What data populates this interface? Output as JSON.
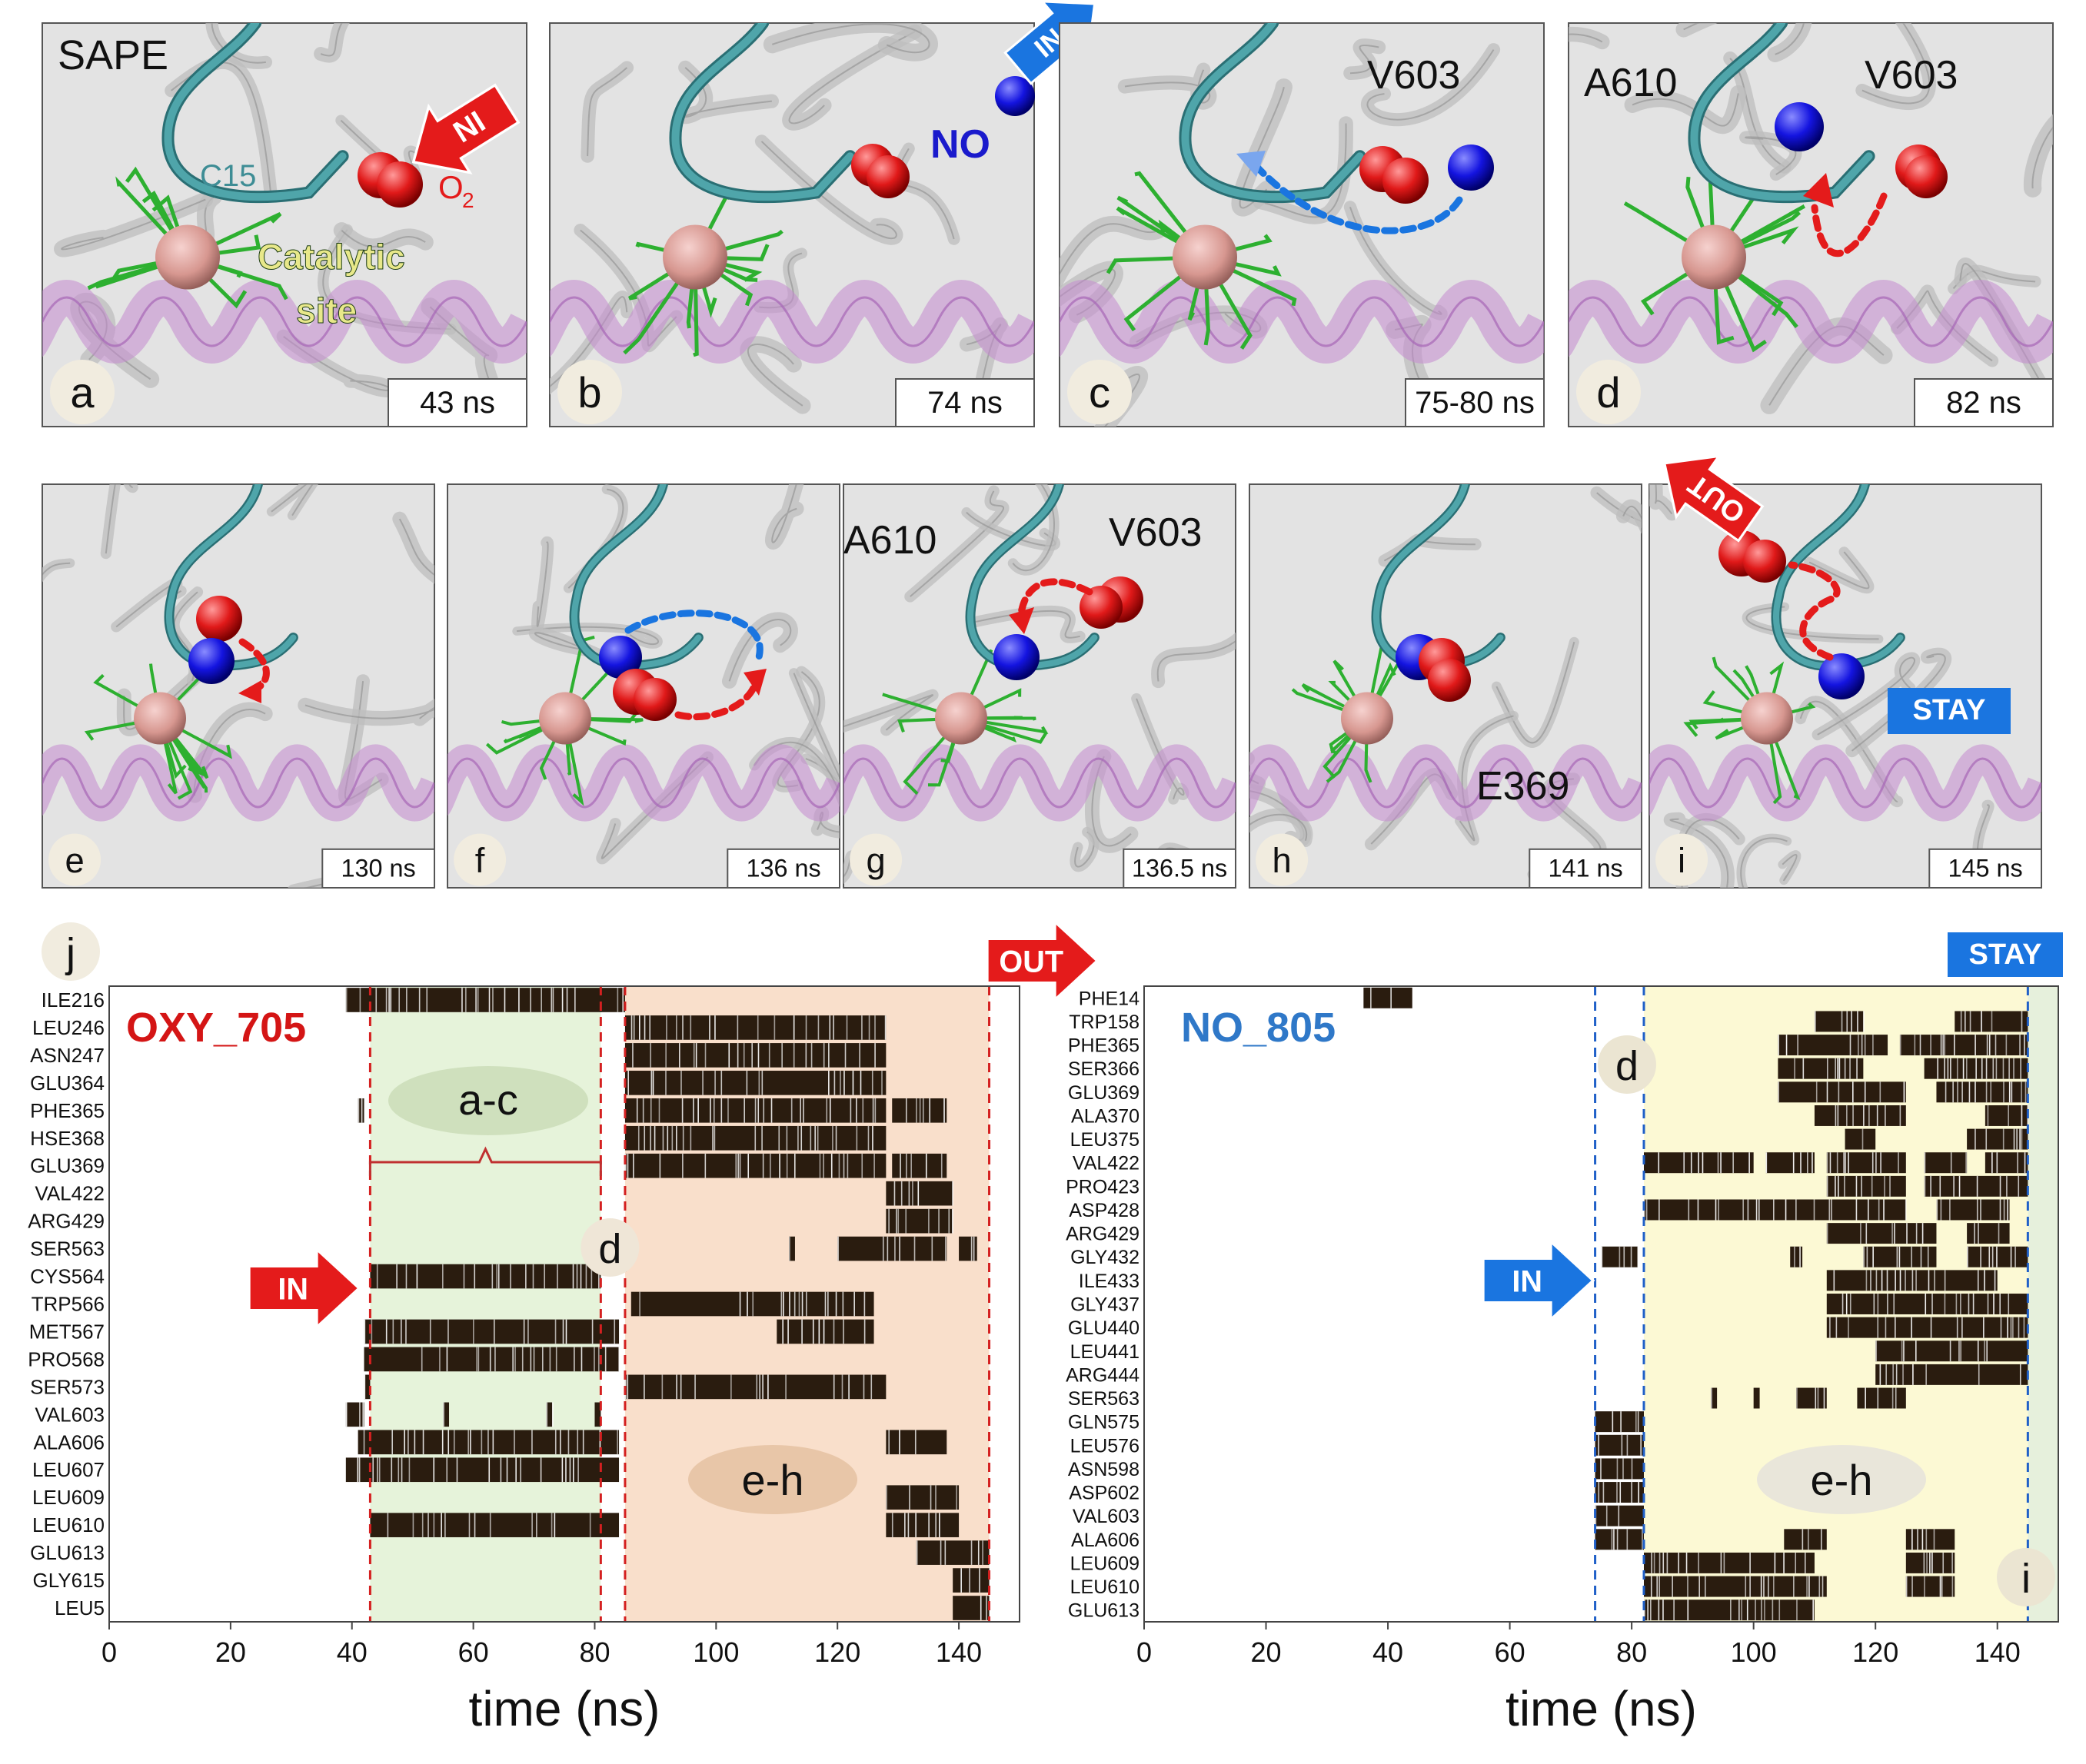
{
  "panels_top": [
    {
      "letter": "a",
      "time": "43 ns"
    },
    {
      "letter": "b",
      "time": "74 ns"
    },
    {
      "letter": "c",
      "time": "75-80 ns"
    },
    {
      "letter": "d",
      "time": "82 ns"
    }
  ],
  "panels_mid": [
    {
      "letter": "e",
      "time": "130 ns"
    },
    {
      "letter": "f",
      "time": "136 ns"
    },
    {
      "letter": "g",
      "time": "136.5 ns"
    },
    {
      "letter": "h",
      "time": "141 ns"
    },
    {
      "letter": "i",
      "time": "145 ns"
    }
  ],
  "annotations": {
    "sape": "SAPE",
    "c15": "C15",
    "in": "IN",
    "o2": "O",
    "o2_sub": "2",
    "catalytic": "Catalytic",
    "site": "site",
    "no": "NO",
    "v603": "V603",
    "a610": "A610",
    "e369": "E369",
    "out": "OUT",
    "stay": "STAY"
  },
  "colors": {
    "red": "#e41b1b",
    "blue": "#1a75e0",
    "green_band": "#e6f3da",
    "orange_band": "#f9dfcb",
    "yellow_band": "#fcf9d4",
    "green_band_right": "#e6f0dc",
    "dash_red": "#d42020",
    "dash_blue": "#2060c8"
  },
  "chart_data": [
    {
      "type": "heatmap",
      "panel": "j",
      "title": "OXY_705",
      "xlabel": "time (ns)",
      "xlim": [
        0,
        150
      ],
      "xticks": [
        0,
        20,
        40,
        60,
        80,
        100,
        120,
        140
      ],
      "residues": [
        "ILE216",
        "LEU246",
        "ASN247",
        "GLU364",
        "PHE365",
        "HSE368",
        "GLU369",
        "VAL422",
        "ARG429",
        "SER563",
        "CYS564",
        "TRP566",
        "MET567",
        "PRO568",
        "SER573",
        "VAL603",
        "ALA606",
        "LEU607",
        "LEU609",
        "LEU610",
        "GLU613",
        "GLY615",
        "LEU5"
      ],
      "bands": [
        {
          "label": "a-c",
          "start": 43,
          "end": 81
        },
        {
          "label": "e-h",
          "start": 85,
          "end": 145
        }
      ],
      "markers": [
        {
          "label": "IN",
          "at": 43
        },
        {
          "label": "d",
          "at": 81
        },
        {
          "label": "OUT",
          "at": 145
        }
      ],
      "contacts": [
        {
          "residue": "ILE216",
          "segments": [
            [
              39,
              85
            ]
          ]
        },
        {
          "residue": "LEU246",
          "segments": [
            [
              85,
              128
            ]
          ]
        },
        {
          "residue": "ASN247",
          "segments": [
            [
              85,
              128
            ]
          ]
        },
        {
          "residue": "GLU364",
          "segments": [
            [
              85,
              128
            ]
          ]
        },
        {
          "residue": "PHE365",
          "segments": [
            [
              41,
              42
            ],
            [
              85,
              128
            ],
            [
              129,
              138
            ]
          ]
        },
        {
          "residue": "HSE368",
          "segments": [
            [
              85,
              128
            ]
          ]
        },
        {
          "residue": "GLU369",
          "segments": [
            [
              85,
              128
            ],
            [
              129,
              138
            ]
          ]
        },
        {
          "residue": "VAL422",
          "segments": [
            [
              128,
              139
            ]
          ]
        },
        {
          "residue": "ARG429",
          "segments": [
            [
              128,
              139
            ]
          ]
        },
        {
          "residue": "SER563",
          "segments": [
            [
              112,
              113
            ],
            [
              120,
              138
            ],
            [
              140,
              143
            ]
          ]
        },
        {
          "residue": "CYS564",
          "segments": [
            [
              43,
              81
            ]
          ]
        },
        {
          "residue": "TRP566",
          "segments": [
            [
              86,
              126
            ]
          ]
        },
        {
          "residue": "MET567",
          "segments": [
            [
              42,
              84
            ],
            [
              110,
              126
            ]
          ]
        },
        {
          "residue": "PRO568",
          "segments": [
            [
              42,
              84
            ]
          ]
        },
        {
          "residue": "SER573",
          "segments": [
            [
              42,
              43
            ],
            [
              85,
              128
            ]
          ]
        },
        {
          "residue": "VAL603",
          "segments": [
            [
              39,
              42
            ],
            [
              55,
              56
            ],
            [
              72,
              73
            ],
            [
              80,
              81
            ]
          ]
        },
        {
          "residue": "ALA606",
          "segments": [
            [
              41,
              84
            ],
            [
              128,
              138
            ]
          ]
        },
        {
          "residue": "LEU607",
          "segments": [
            [
              39,
              84
            ]
          ]
        },
        {
          "residue": "LEU609",
          "segments": [
            [
              128,
              140
            ]
          ]
        },
        {
          "residue": "LEU610",
          "segments": [
            [
              43,
              84
            ],
            [
              128,
              140
            ]
          ]
        },
        {
          "residue": "GLU613",
          "segments": [
            [
              133,
              145
            ]
          ]
        },
        {
          "residue": "GLY615",
          "segments": [
            [
              139,
              145
            ]
          ]
        },
        {
          "residue": "LEU5",
          "segments": [
            [
              139,
              145
            ]
          ]
        }
      ]
    },
    {
      "type": "heatmap",
      "title": "NO_805",
      "xlabel": "time (ns)",
      "xlim": [
        0,
        150
      ],
      "xticks": [
        0,
        20,
        40,
        60,
        80,
        100,
        120,
        140
      ],
      "residues": [
        "PHE14",
        "TRP158",
        "PHE365",
        "SER366",
        "GLU369",
        "ALA370",
        "LEU375",
        "VAL422",
        "PRO423",
        "ASP428",
        "ARG429",
        "GLY432",
        "ILE433",
        "GLY437",
        "GLU440",
        "LEU441",
        "ARG444",
        "SER563",
        "GLN575",
        "LEU576",
        "ASN598",
        "ASP602",
        "VAL603",
        "ALA606",
        "LEU609",
        "LEU610",
        "GLU613"
      ],
      "bands": [
        {
          "label": "e-h",
          "start": 82,
          "end": 145
        },
        {
          "label": "i",
          "start": 145,
          "end": 150
        }
      ],
      "markers": [
        {
          "label": "IN",
          "at": 74
        },
        {
          "label": "d",
          "at": 82
        },
        {
          "label": "STAY",
          "at": 145
        }
      ],
      "contacts": [
        {
          "residue": "PHE14",
          "segments": [
            [
              36,
              44
            ]
          ]
        },
        {
          "residue": "TRP158",
          "segments": [
            [
              110,
              118
            ],
            [
              133,
              145
            ]
          ]
        },
        {
          "residue": "PHE365",
          "segments": [
            [
              104,
              122
            ],
            [
              124,
              145
            ]
          ]
        },
        {
          "residue": "SER366",
          "segments": [
            [
              104,
              118
            ],
            [
              128,
              145
            ]
          ]
        },
        {
          "residue": "GLU369",
          "segments": [
            [
              104,
              125
            ],
            [
              130,
              145
            ]
          ]
        },
        {
          "residue": "ALA370",
          "segments": [
            [
              110,
              125
            ],
            [
              138,
              145
            ]
          ]
        },
        {
          "residue": "LEU375",
          "segments": [
            [
              115,
              120
            ],
            [
              135,
              145
            ]
          ]
        },
        {
          "residue": "VAL422",
          "segments": [
            [
              82,
              100
            ],
            [
              102,
              110
            ],
            [
              112,
              125
            ],
            [
              128,
              135
            ],
            [
              138,
              145
            ]
          ]
        },
        {
          "residue": "PRO423",
          "segments": [
            [
              112,
              125
            ],
            [
              128,
              145
            ]
          ]
        },
        {
          "residue": "ASP428",
          "segments": [
            [
              82,
              125
            ],
            [
              130,
              142
            ]
          ]
        },
        {
          "residue": "ARG429",
          "segments": [
            [
              112,
              130
            ],
            [
              135,
              142
            ]
          ]
        },
        {
          "residue": "GLY432",
          "segments": [
            [
              75,
              81
            ],
            [
              106,
              108
            ],
            [
              118,
              130
            ],
            [
              135,
              145
            ]
          ]
        },
        {
          "residue": "ILE433",
          "segments": [
            [
              112,
              140
            ]
          ]
        },
        {
          "residue": "GLY437",
          "segments": [
            [
              112,
              145
            ]
          ]
        },
        {
          "residue": "GLU440",
          "segments": [
            [
              112,
              145
            ]
          ]
        },
        {
          "residue": "LEU441",
          "segments": [
            [
              120,
              145
            ]
          ]
        },
        {
          "residue": "ARG444",
          "segments": [
            [
              120,
              145
            ]
          ]
        },
        {
          "residue": "SER563",
          "segments": [
            [
              93,
              94
            ],
            [
              100,
              101
            ],
            [
              107,
              112
            ],
            [
              117,
              125
            ]
          ]
        },
        {
          "residue": "GLN575",
          "segments": [
            [
              74,
              82
            ]
          ]
        },
        {
          "residue": "LEU576",
          "segments": [
            [
              74,
              82
            ]
          ]
        },
        {
          "residue": "ASN598",
          "segments": [
            [
              74,
              82
            ]
          ]
        },
        {
          "residue": "ASP602",
          "segments": [
            [
              74,
              82
            ]
          ]
        },
        {
          "residue": "VAL603",
          "segments": [
            [
              74,
              82
            ]
          ]
        },
        {
          "residue": "ALA606",
          "segments": [
            [
              74,
              82
            ],
            [
              105,
              112
            ],
            [
              125,
              133
            ]
          ]
        },
        {
          "residue": "LEU609",
          "segments": [
            [
              82,
              110
            ],
            [
              125,
              133
            ]
          ]
        },
        {
          "residue": "LEU610",
          "segments": [
            [
              82,
              112
            ],
            [
              125,
              133
            ]
          ]
        },
        {
          "residue": "GLU613",
          "segments": [
            [
              82,
              110
            ]
          ]
        }
      ]
    }
  ]
}
